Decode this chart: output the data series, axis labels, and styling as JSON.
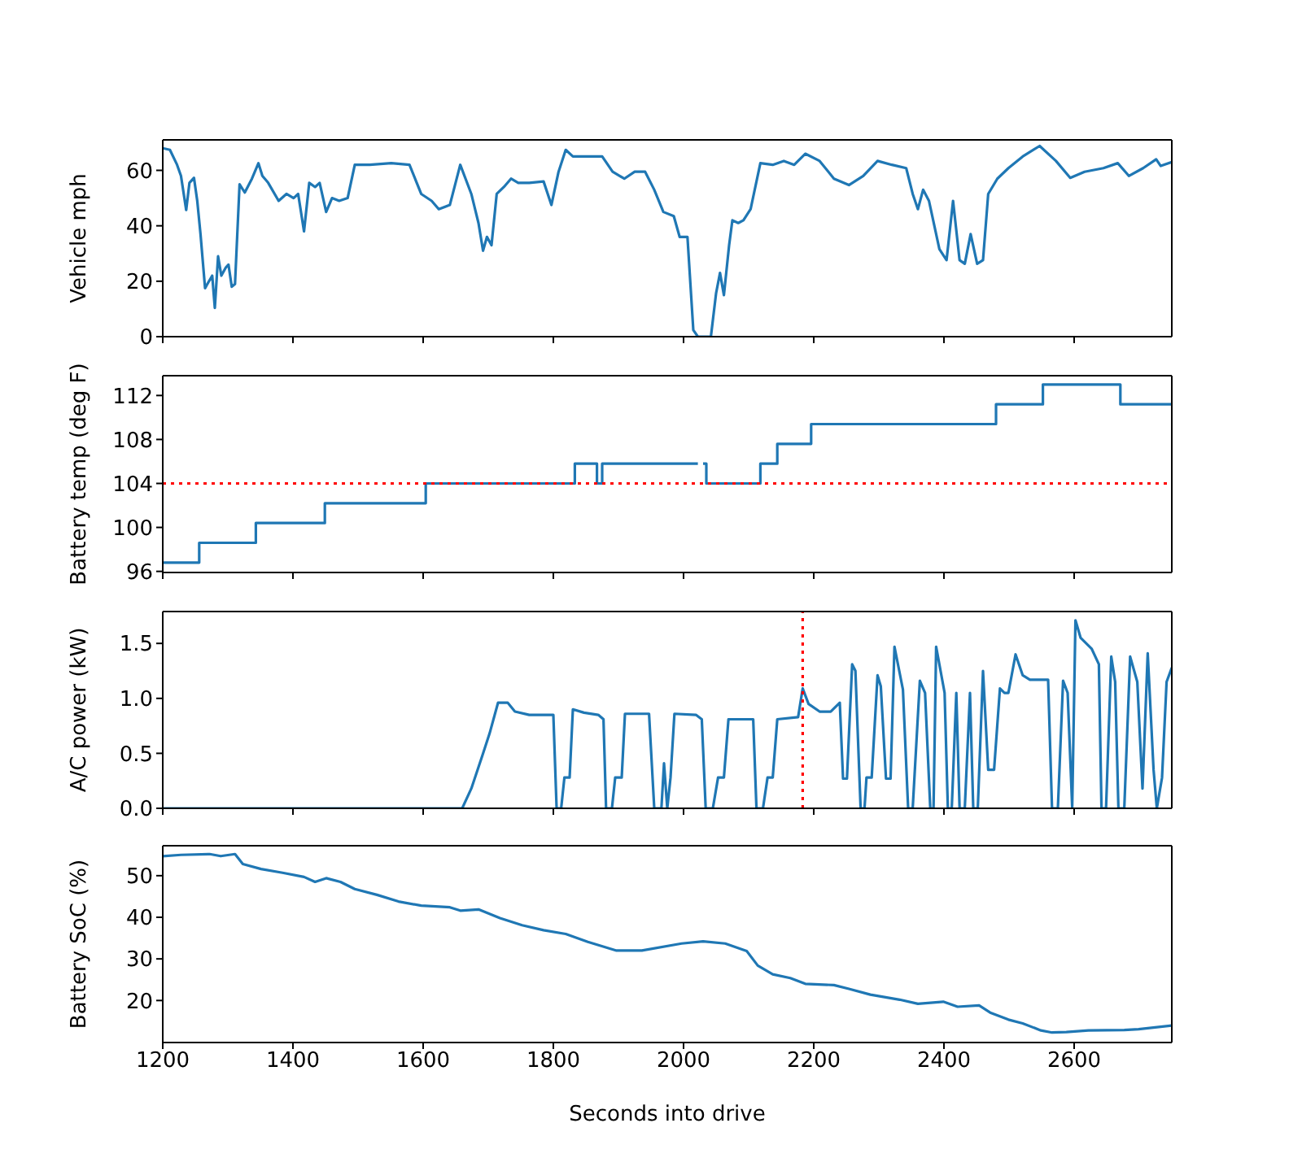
{
  "chart_data": [
    {
      "type": "line",
      "ylabel": "Vehicle mph",
      "xlim": [
        1200,
        2750
      ],
      "xticks": [
        1200,
        1400,
        1600,
        1800,
        2000,
        2200,
        2400,
        2600
      ],
      "ylim": [
        0,
        71
      ],
      "yticks": [
        0,
        20,
        40,
        60
      ],
      "tick_labels": "y",
      "color": "#1f77b4",
      "x": [
        1200,
        1211,
        1222,
        1228,
        1236,
        1241,
        1248,
        1253,
        1258,
        1265,
        1270,
        1276,
        1280,
        1285,
        1290,
        1297,
        1301,
        1306,
        1311,
        1318,
        1326,
        1337,
        1347,
        1353,
        1362,
        1378,
        1390,
        1401,
        1408,
        1417,
        1425,
        1434,
        1441,
        1451,
        1460,
        1471,
        1484,
        1495,
        1518,
        1551,
        1579,
        1597,
        1613,
        1624,
        1641,
        1657,
        1674,
        1685,
        1692,
        1698,
        1705,
        1713,
        1724,
        1735,
        1746,
        1763,
        1785,
        1797,
        1808,
        1819,
        1830,
        1853,
        1875,
        1891,
        1909,
        1925,
        1941,
        1955,
        1969,
        1985,
        1994,
        2006,
        2015,
        2022,
        2042,
        2050,
        2056,
        2062,
        2070,
        2075,
        2084,
        2092,
        2103,
        2118,
        2137,
        2154,
        2170,
        2187,
        2209,
        2231,
        2254,
        2276,
        2298,
        2320,
        2342,
        2352,
        2360,
        2368,
        2377,
        2393,
        2404,
        2414,
        2424,
        2432,
        2441,
        2451,
        2460,
        2468,
        2482,
        2499,
        2521,
        2547,
        2572,
        2594,
        2616,
        2645,
        2667,
        2684,
        2706,
        2726,
        2733,
        2750
      ],
      "values": [
        68,
        67.4,
        62,
        58,
        45.7,
        55.5,
        57.3,
        49,
        37,
        17.5,
        19.6,
        22,
        10.4,
        29,
        22,
        25,
        26,
        18,
        19,
        55,
        52,
        57,
        62.6,
        58,
        55.5,
        49,
        51.5,
        50,
        51.5,
        38,
        55.5,
        54,
        55.5,
        45,
        50,
        49,
        50,
        62,
        62,
        62.6,
        62,
        51.5,
        49,
        46,
        47.5,
        62,
        51.5,
        41,
        31,
        36,
        33,
        51.5,
        54,
        57,
        55.5,
        55.5,
        56,
        47.5,
        59.5,
        67.4,
        65,
        65,
        65,
        59.5,
        57,
        59.5,
        59.5,
        53,
        45,
        43.5,
        36,
        36,
        2.4,
        0,
        0,
        15.7,
        23,
        15,
        33,
        42,
        41,
        42,
        46,
        62.6,
        62,
        63.4,
        62,
        66,
        63.4,
        57,
        54.7,
        58,
        63.4,
        62,
        60.8,
        51.5,
        46,
        53,
        49,
        31.6,
        27.6,
        49,
        27.6,
        26.3,
        37,
        26.3,
        27.6,
        51.5,
        57,
        60.8,
        65,
        68.8,
        63.4,
        57.3,
        59.5,
        60.8,
        62.6,
        58,
        60.8,
        64,
        61.6,
        63
      ]
    },
    {
      "type": "step",
      "ylabel": "Battery temp (deg F)",
      "xlim": [
        1200,
        2750
      ],
      "xticks": [
        1200,
        1400,
        1600,
        1800,
        2000,
        2200,
        2400,
        2600
      ],
      "ylim": [
        95.9,
        113.8
      ],
      "yticks": [
        96,
        100,
        104,
        108,
        112
      ],
      "tick_labels": "y",
      "color": "#1f77b4",
      "ref_lines": [
        {
          "axis": "y",
          "value": 104,
          "color": "#ff0000",
          "line_style": "dotted"
        }
      ],
      "x": [
        1200,
        1256,
        1343,
        1449,
        1604,
        1833,
        1867,
        1875,
        2022,
        2025,
        2030,
        2035,
        2118,
        2144,
        2196,
        2480,
        2552,
        2671,
        2750
      ],
      "values": [
        96.8,
        98.6,
        100.4,
        102.2,
        104,
        105.8,
        104,
        105.8,
        105.8,
        null,
        105.8,
        104,
        105.8,
        107.6,
        109.4,
        111.2,
        113,
        111.2,
        111.2
      ]
    },
    {
      "type": "line",
      "ylabel": "A/C power (kW)",
      "xlim": [
        1200,
        2750
      ],
      "xticks": [
        1200,
        1400,
        1600,
        1800,
        2000,
        2200,
        2400,
        2600
      ],
      "ylim": [
        0,
        1.79
      ],
      "yticks": [
        {
          "value": 0,
          "label": "0.0"
        },
        {
          "value": 0.5,
          "label": "0.5"
        },
        {
          "value": 1,
          "label": "1.0"
        },
        {
          "value": 1.5,
          "label": "1.5"
        }
      ],
      "tick_labels": "y",
      "color": "#1f77b4",
      "ref_lines": [
        {
          "axis": "x",
          "value": 2183,
          "color": "#ff0000",
          "line_style": "dotted"
        }
      ],
      "x": [
        1200,
        1660,
        1674,
        1691,
        1702,
        1715,
        1730,
        1741,
        1763,
        1785,
        1800,
        1805,
        1812,
        1817,
        1825,
        1830,
        1847,
        1869,
        1877,
        1881,
        1890,
        1895,
        1905,
        1910,
        1947,
        1955,
        1966,
        1970,
        1975,
        1980,
        1986,
        2019,
        2028,
        2034,
        2045,
        2053,
        2062,
        2069,
        2107,
        2112,
        2122,
        2129,
        2137,
        2144,
        2176,
        2183,
        2192,
        2209,
        2226,
        2240,
        2245,
        2251,
        2259,
        2264,
        2272,
        2278,
        2281,
        2289,
        2298,
        2303,
        2311,
        2318,
        2324,
        2337,
        2345,
        2352,
        2363,
        2371,
        2379,
        2384,
        2388,
        2401,
        2406,
        2412,
        2419,
        2424,
        2432,
        2440,
        2445,
        2452,
        2460,
        2468,
        2477,
        2486,
        2493,
        2499,
        2510,
        2521,
        2532,
        2560,
        2566,
        2575,
        2583,
        2590,
        2597,
        2602,
        2610,
        2627,
        2638,
        2642,
        2649,
        2657,
        2663,
        2668,
        2677,
        2686,
        2697,
        2705,
        2713,
        2722,
        2727,
        2735,
        2742,
        2750
      ],
      "values": [
        0,
        0,
        0.18,
        0.48,
        0.68,
        0.96,
        0.96,
        0.88,
        0.85,
        0.85,
        0.85,
        0,
        0,
        0.28,
        0.28,
        0.9,
        0.87,
        0.85,
        0.81,
        0,
        0,
        0.28,
        0.28,
        0.86,
        0.86,
        0,
        0,
        0.41,
        0,
        0.28,
        0.86,
        0.85,
        0.81,
        0,
        0,
        0.28,
        0.28,
        0.81,
        0.81,
        0,
        0,
        0.28,
        0.28,
        0.81,
        0.83,
        1.09,
        0.95,
        0.88,
        0.88,
        0.96,
        0.27,
        0.27,
        1.31,
        1.25,
        0,
        0,
        0.28,
        0.28,
        1.21,
        1.11,
        0.27,
        0.27,
        1.47,
        1.08,
        0,
        0,
        1.16,
        1.05,
        0,
        0,
        1.47,
        1.05,
        0,
        0,
        1.05,
        0,
        0,
        1.05,
        0,
        0,
        1.25,
        0.35,
        0.35,
        1.09,
        1.05,
        1.05,
        1.4,
        1.21,
        1.17,
        1.17,
        0,
        0,
        1.16,
        1.05,
        0.01,
        1.71,
        1.55,
        1.45,
        1.31,
        0,
        0,
        1.38,
        1.15,
        0,
        0,
        1.38,
        1.15,
        0.18,
        1.41,
        0.35,
        0,
        0.28,
        1.15,
        1.28
      ]
    },
    {
      "type": "line",
      "ylabel": "Battery SoC (%)",
      "xlabel": "Seconds into drive",
      "xlim": [
        1200,
        2750
      ],
      "xticks": [
        1200,
        1400,
        1600,
        1800,
        2000,
        2200,
        2400,
        2600
      ],
      "ylim": [
        9.9,
        57.2
      ],
      "yticks": [
        20,
        30,
        40,
        50
      ],
      "color": "#1f77b4",
      "x": [
        1200,
        1228,
        1272,
        1289,
        1311,
        1323,
        1351,
        1384,
        1417,
        1434,
        1451,
        1473,
        1495,
        1529,
        1562,
        1597,
        1641,
        1657,
        1685,
        1718,
        1752,
        1785,
        1819,
        1853,
        1897,
        1936,
        1997,
        2030,
        2064,
        2097,
        2114,
        2137,
        2164,
        2187,
        2231,
        2254,
        2287,
        2332,
        2360,
        2399,
        2421,
        2454,
        2471,
        2499,
        2521,
        2549,
        2566,
        2588,
        2622,
        2677,
        2699,
        2750
      ],
      "values": [
        54.7,
        55,
        55.2,
        54.7,
        55.2,
        52.8,
        51.6,
        50.7,
        49.7,
        48.5,
        49.4,
        48.5,
        46.8,
        45.4,
        43.8,
        42.8,
        42.4,
        41.6,
        41.9,
        39.8,
        38.1,
        36.9,
        36,
        34.1,
        32,
        32,
        33.7,
        34.2,
        33.7,
        31.9,
        28.4,
        26.3,
        25.4,
        24,
        23.7,
        22.8,
        21.4,
        20.2,
        19.2,
        19.7,
        18.5,
        18.8,
        17.1,
        15.4,
        14.5,
        12.8,
        12.3,
        12.4,
        12.8,
        12.9,
        13.1,
        14
      ]
    }
  ]
}
